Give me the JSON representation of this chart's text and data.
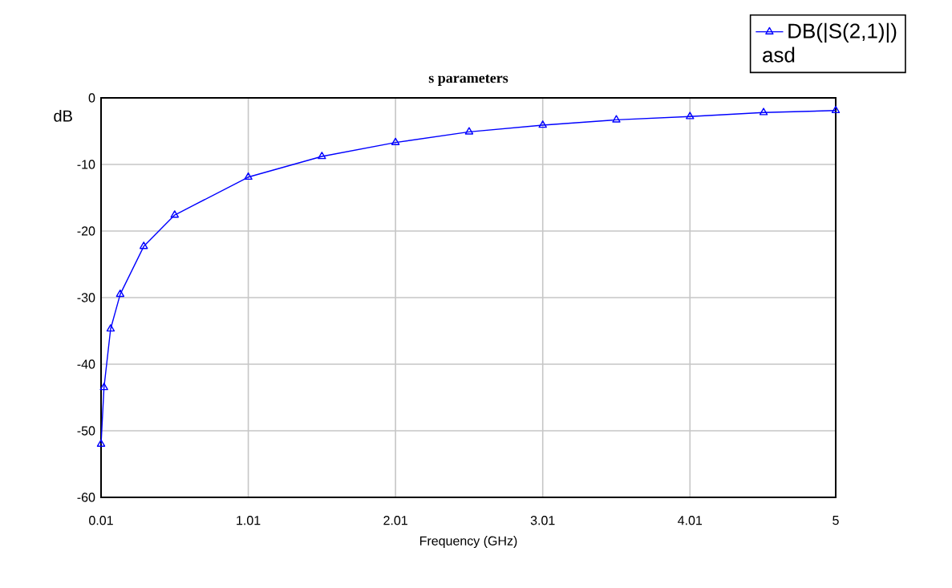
{
  "chart_data": {
    "type": "line",
    "title": "s parameters",
    "xlabel": "Frequency (GHz)",
    "ylabel": "dB",
    "x": [
      0.01,
      0.03,
      0.075,
      0.14,
      0.3,
      0.51,
      1.01,
      1.51,
      2.01,
      2.51,
      3.01,
      3.51,
      4.01,
      4.51,
      5
    ],
    "series": [
      {
        "name": "DB(|S(2,1)|)",
        "color": "#0000ff",
        "values": [
          -52,
          -43.5,
          -34.7,
          -29.5,
          -22.3,
          -17.6,
          -11.9,
          -8.8,
          -6.7,
          -5.1,
          -4.1,
          -3.3,
          -2.8,
          -2.2,
          -1.9
        ]
      }
    ],
    "annotations": [
      "asd"
    ],
    "xlim": [
      0.01,
      5
    ],
    "xticks": [
      0.01,
      1.01,
      2.01,
      3.01,
      4.01,
      5
    ],
    "ylim": [
      -60,
      0
    ],
    "yticks": [
      -60,
      -50,
      -40,
      -30,
      -20,
      -10,
      0
    ],
    "grid": true,
    "legend": "top right",
    "marker": "triangle",
    "line_style": "solid"
  }
}
